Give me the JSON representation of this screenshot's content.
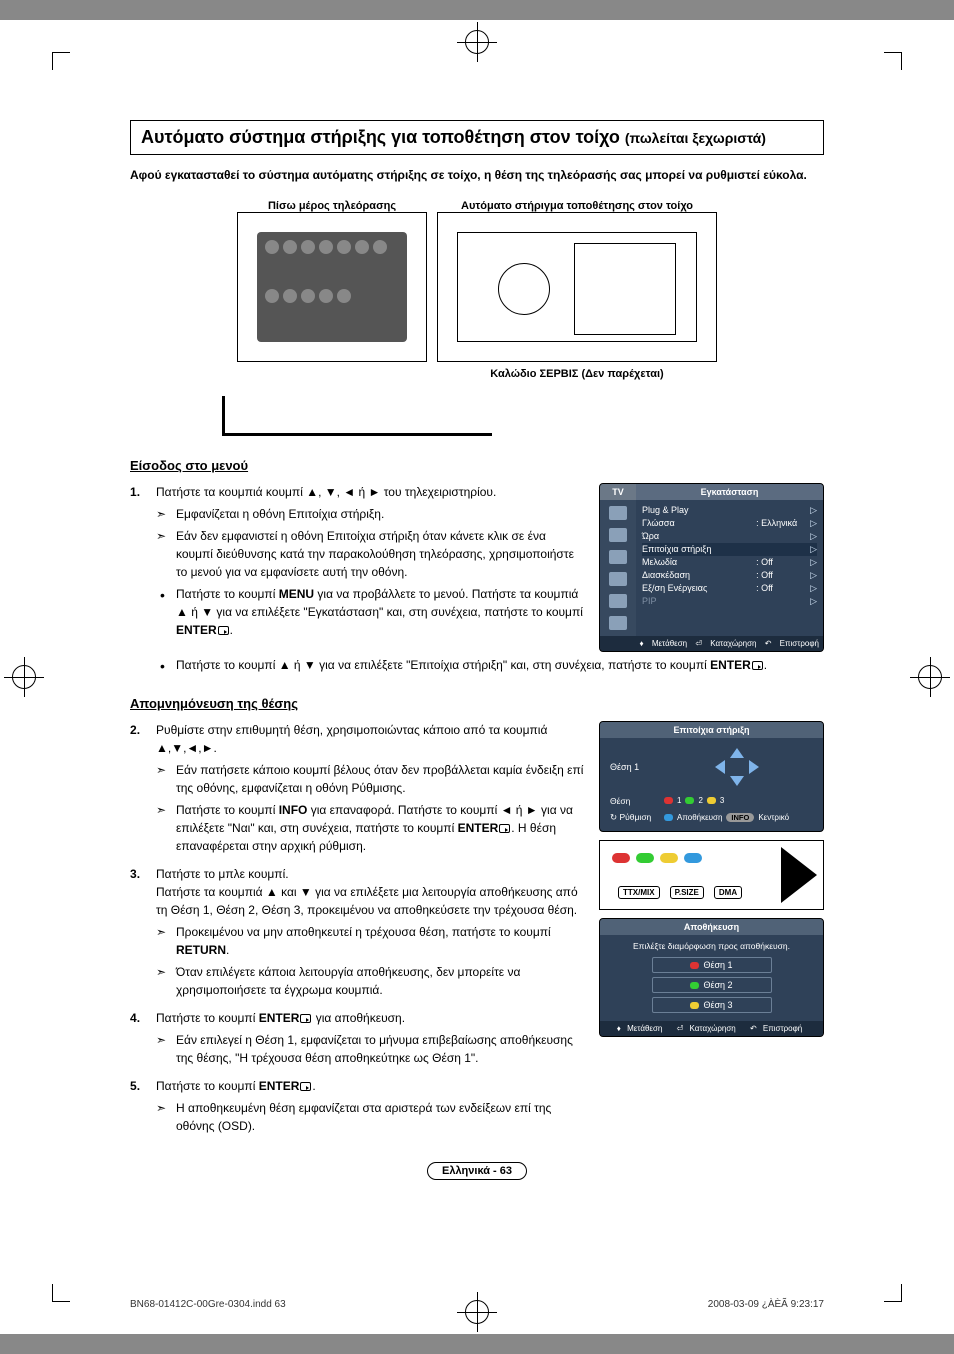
{
  "registration_marks": true,
  "title": {
    "main": "Αυτόματο σύστημα στήριξης για τοποθέτηση στον τοίχο",
    "suffix": "(πωλείται ξεχωριστά)"
  },
  "intro": "Αφού εγκατασταθεί το σύστημα αυτόματης στήριξης σε τοίχο, η θέση της τηλεόρασής σας μπορεί να ρυθμιστεί εύκολα.",
  "diagram": {
    "left_caption": "Πίσω μέρος τηλεόρασης",
    "right_caption": "Αυτόματο στήριγμα τοποθέτησης στον τοίχο",
    "cable_label": "Καλώδιο ΣΕΡΒΙΣ (Δεν παρέχεται)"
  },
  "menu_entry": {
    "heading": "Είσοδος στο μενού",
    "step1_lead": "Πατήστε τα κουμπιά κουμπί ▲, ▼, ◄ ή ► του τηλεχειριστηρίου.",
    "s1a": "Εμφανίζεται η οθόνη Επιτοίχια στήριξη.",
    "s1b": "Εάν δεν εμφανιστεί η οθόνη Επιτοίχια στήριξη όταν κάνετε κλικ σε ένα κουμπί διεύθυνσης κατά την παρακολούθηση τηλεόρασης, χρησιμοποιήστε το μενού για να εμφανίσετε αυτή την οθόνη.",
    "s1c_pre": "Πατήστε το κουμπί ",
    "s1c_menu": "MENU",
    "s1c_mid": " για να προβάλλετε το μενού. Πατήστε τα κουμπιά ▲ ή ▼ για να επιλέξετε \"Εγκατάσταση\" και, στη συνέχεια, πατήστε το κουμπί ",
    "s1c_enter": "ENTER",
    "s1d_pre": "Πατήστε το κουμπί ▲ ή ▼ για να επιλέξετε \"Επιτοίχια στήριξη\" και, στη συνέχεια, πατήστε το κουμπί ",
    "s1d_enter": "ENTER"
  },
  "osd1": {
    "tab": "TV",
    "title": "Εγκατάσταση",
    "rows": [
      {
        "label": "Plug & Play",
        "value": "",
        "chev": "▷",
        "dim": false
      },
      {
        "label": "Γλώσσα",
        "value": ": Ελληνικά",
        "chev": "▷",
        "dim": false
      },
      {
        "label": "Ώρα",
        "value": "",
        "chev": "▷",
        "dim": false
      },
      {
        "label": "Επιτοίχια στήριξη",
        "value": "",
        "chev": "▷",
        "dim": false,
        "hi": true
      },
      {
        "label": "Μελωδία",
        "value": ": Off",
        "chev": "▷",
        "dim": false
      },
      {
        "label": "Διασκέδαση",
        "value": ": Off",
        "chev": "▷",
        "dim": false
      },
      {
        "label": "Εξ/ση Ενέργειας",
        "value": ": Off",
        "chev": "▷",
        "dim": false
      },
      {
        "label": "PIP",
        "value": "",
        "chev": "▷",
        "dim": true
      }
    ],
    "footer": {
      "move": "Μετάθεση",
      "enter": "Καταχώρηση",
      "return": "Επιστροφή"
    }
  },
  "memorize": {
    "heading": "Απομνημόνευση της θέσης",
    "step2_lead": "Ρυθμίστε στην επιθυμητή θέση, χρησιμοποιώντας κάποιο από τα κουμπιά ▲,▼,◄,►.",
    "s2a": "Εάν πατήσετε κάποιο κουμπί βέλους όταν δεν προβάλλεται καμία ένδειξη επί της οθόνης, εμφανίζεται η οθόνη Ρύθμισης.",
    "s2b_pre": "Πατήστε το κουμπί ",
    "s2b_info": "INFO",
    "s2b_mid": " για επαναφορά. Πατήστε το κουμπί ◄ ή ► για να επιλέξετε \"Ναι\" και, στη συνέχεια, πατήστε το κουμπί ",
    "s2b_enter": "ENTER",
    "s2b_post": ". Η θέση επαναφέρεται στην αρχική ρύθμιση.",
    "step3_a": "Πατήστε το μπλε κουμπί.",
    "step3_b": "Πατήστε τα κουμπιά ▲ και ▼ για να επιλέξετε μια λειτουργία αποθήκευσης από τη Θέση 1, Θέση 2, Θέση 3, προκειμένου να αποθηκεύσετε την τρέχουσα θέση.",
    "s3a_pre": "Προκειμένου να μην αποθηκευτεί η τρέχουσα θέση, πατήστε το κουμπί ",
    "s3a_return": "RETURN",
    "s3b": "Όταν επιλέγετε κάποια λειτουργία αποθήκευσης, δεν μπορείτε να χρησιμοποιήσετε τα έγχρωμα κουμπιά.",
    "step4_pre": "Πατήστε το κουμπί ",
    "step4_enter": "ENTER",
    "step4_post": " για αποθήκευση.",
    "s4a": "Εάν επιλεγεί η Θέση 1, εμφανίζεται το μήνυμα επιβεβαίωσης αποθήκευσης της θέσης, \"Η τρέχουσα θέση αποθηκεύτηκε ως Θέση 1\".",
    "step5_pre": "Πατήστε το κουμπί ",
    "step5_enter": "ENTER",
    "s5a": "Η αποθηκευμένη θέση εμφανίζεται στα αριστερά των ενδείξεων επί της οθόνης (OSD)."
  },
  "osd2": {
    "title": "Επιτοίχια στήριξη",
    "pos_label": "Θέση 1",
    "row_pos": "Θέση",
    "row_adj": "Ρύθμιση",
    "n1": "1",
    "n2": "2",
    "n3": "3",
    "save": "Αποθήκευση",
    "center": "Κεντρικό",
    "info": "INFO"
  },
  "remote": {
    "b1": "TTX/MIX",
    "b2": "P.SIZE",
    "b3": "DMA"
  },
  "osd3": {
    "title": "Αποθήκευση",
    "msg": "Επιλέξτε διαμόρφωση προς αποθήκευση.",
    "opt1": "Θέση 1",
    "opt2": "Θέση 2",
    "opt3": "Θέση 3",
    "f_move": "Μετάθεση",
    "f_enter": "Καταχώρηση",
    "f_return": "Επιστροφή"
  },
  "page_number": "Ελληνικά - 63",
  "footer": {
    "left": "BN68-01412C-00Gre-0304.indd   63",
    "right": "2008-03-09   ¿ÀÈÃ 9:23:17"
  },
  "colors": {
    "osd_bg": "#2f4158",
    "osd_header": "#506277",
    "osd_footer": "#1d2c3e",
    "arrow": "#7fb4ea",
    "dot_red": "#d33",
    "dot_green": "#3c3",
    "dot_yellow": "#ec3",
    "dot_blue": "#39d"
  }
}
